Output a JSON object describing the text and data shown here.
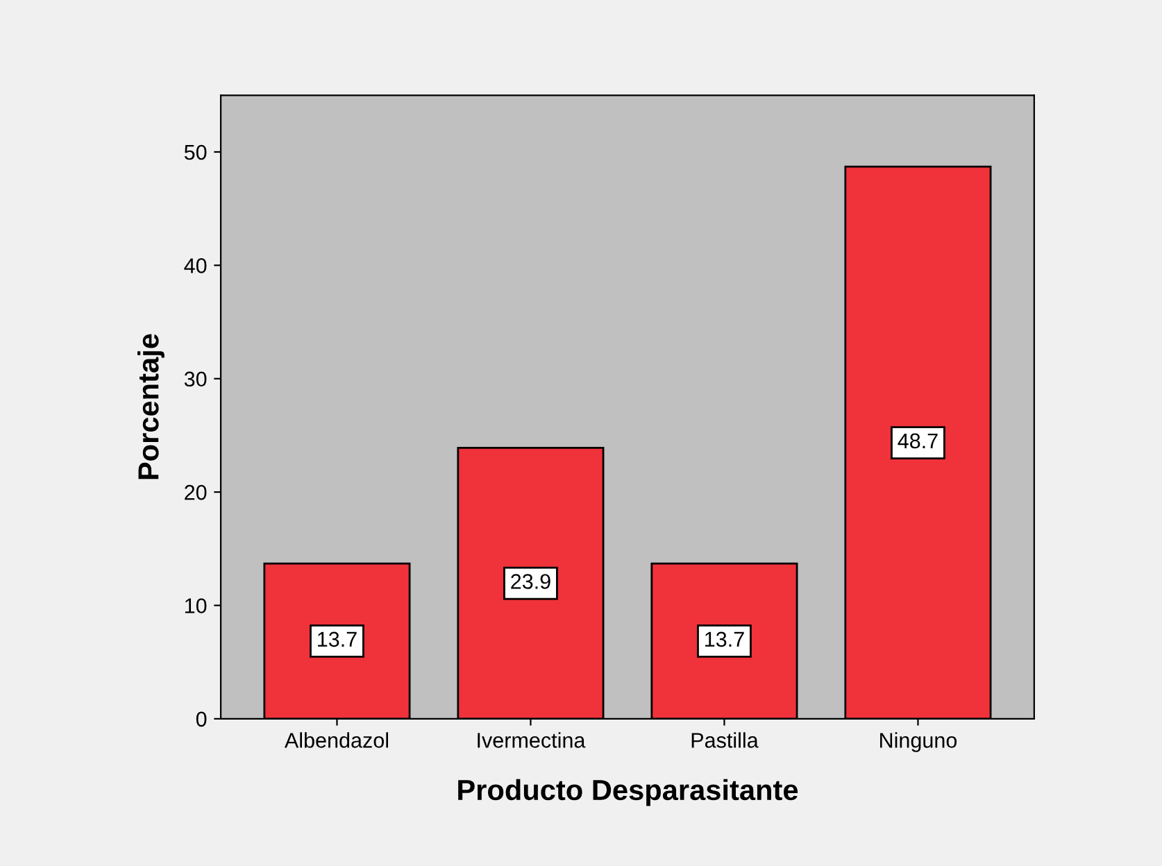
{
  "chart_data": {
    "type": "bar",
    "xlabel": "Producto Desparasitante",
    "ylabel": "Porcentaje",
    "categories": [
      "Albendazol",
      "Ivermectina",
      "Pastilla",
      "Ninguno"
    ],
    "values": [
      13.7,
      23.9,
      13.7,
      48.7
    ],
    "color": "#f0323a",
    "ylim": [
      0,
      55
    ],
    "yticks": [
      0,
      10,
      20,
      30,
      40,
      50
    ],
    "grid": false,
    "data_labels": true
  }
}
